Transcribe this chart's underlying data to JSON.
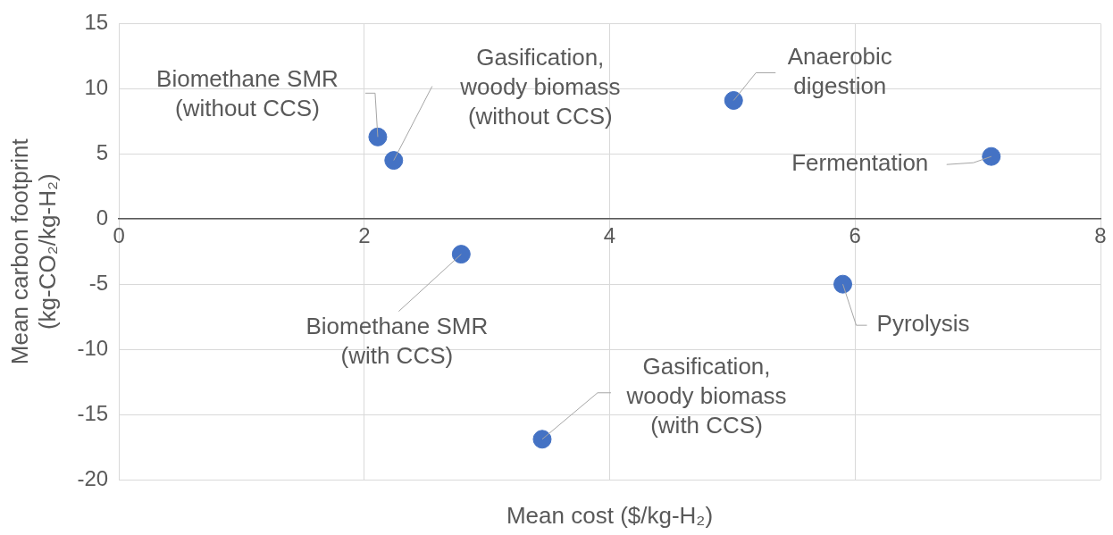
{
  "chart_data": {
    "type": "scatter",
    "xlabel": "Mean cost ($/kg-H₂)",
    "ylabel": "Mean carbon footprint\n(kg-CO₂/kg-H₂)",
    "x": [
      2.11,
      2.24,
      5.01,
      7.11,
      2.79,
      5.9,
      3.45
    ],
    "series": [
      {
        "color": "#4472c4",
        "values": [
          6.3,
          4.5,
          9.1,
          4.8,
          -2.7,
          -5.0,
          -16.9
        ]
      }
    ],
    "xlim": [
      0,
      8
    ],
    "xticks": [
      0,
      2,
      4,
      6,
      8
    ],
    "ylim": [
      -20,
      15
    ],
    "yticks": [
      -20,
      -15,
      -10,
      -5,
      0,
      5,
      10,
      15
    ],
    "grid": true,
    "marker": "circle",
    "legend": false,
    "annotations": [
      {
        "text": "Biomethane SMR\n(without CCS)",
        "x": 2.11,
        "y": 6.3
      },
      {
        "text": "Gasification,\nwoody biomass\n(without CCS)",
        "x": 2.24,
        "y": 4.5
      },
      {
        "text": "Anaerobic\ndigestion",
        "x": 5.01,
        "y": 9.1
      },
      {
        "text": "Fermentation",
        "x": 7.11,
        "y": 4.8
      },
      {
        "text": "Biomethane SMR\n(with CCS)",
        "x": 2.79,
        "y": -2.7
      },
      {
        "text": "Pyrolysis",
        "x": 5.9,
        "y": -5.0
      },
      {
        "text": "Gasification,\nwoody biomass\n(with CCS)",
        "x": 3.45,
        "y": -16.9
      }
    ]
  }
}
